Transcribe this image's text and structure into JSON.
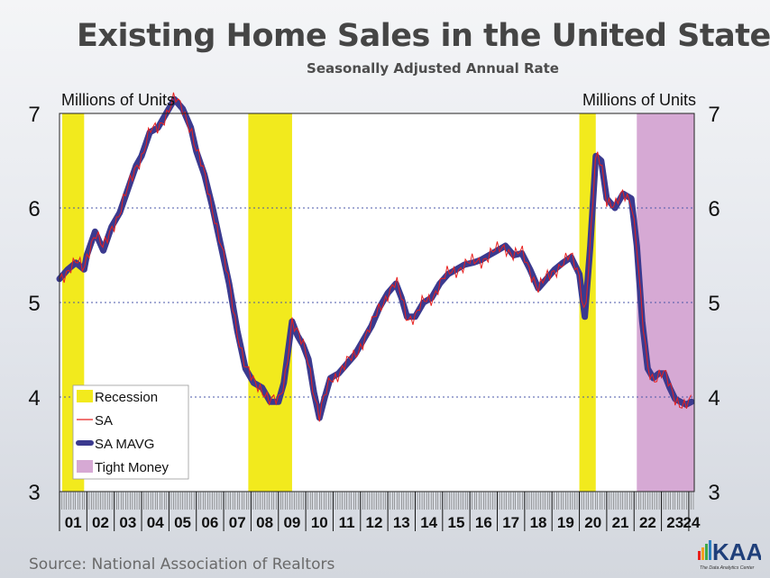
{
  "header": {
    "title": "Existing Home Sales in the United States",
    "subtitle": "Seasonally Adjusted Annual Rate"
  },
  "footer": {
    "source": "Source: National Association of Realtors",
    "logo_text": "KAA",
    "logo_tagline": "The Data Analytics Center"
  },
  "chart_data": {
    "type": "line",
    "title": "Existing Home Sales in the United States",
    "subtitle": "Seasonally Adjusted Annual Rate",
    "ylabel_left": "Millions of Units",
    "ylabel_right": "Millions of Units",
    "ylim": [
      3,
      7
    ],
    "yticks": [
      3,
      4,
      5,
      6,
      7
    ],
    "xlim": [
      2001.0,
      2024.2
    ],
    "year_labels": [
      "01",
      "02",
      "03",
      "04",
      "05",
      "06",
      "07",
      "08",
      "09",
      "10",
      "11",
      "12",
      "13",
      "14",
      "15",
      "16",
      "17",
      "18",
      "19",
      "20",
      "21",
      "22",
      "23",
      "24"
    ],
    "grid": "dotted horizontal at 4, 5, 6",
    "legend_position": "bottom-left",
    "legend": [
      {
        "label": "Recession",
        "kind": "box",
        "color": "#f2ea1d"
      },
      {
        "label": "SA",
        "kind": "line",
        "color": "#e8201e"
      },
      {
        "label": "SA MAVG",
        "kind": "thick-line",
        "color": "#3b3a8f"
      },
      {
        "label": "Tight Money",
        "kind": "box",
        "color": "#d6a9d4"
      }
    ],
    "shaded_periods": [
      {
        "name": "Recession",
        "start": 2001.1,
        "end": 2001.9,
        "color": "#f2ea1d"
      },
      {
        "name": "Recession",
        "start": 2007.9,
        "end": 2009.5,
        "color": "#f2ea1d"
      },
      {
        "name": "Recession",
        "start": 2020.0,
        "end": 2020.6,
        "color": "#f2ea1d"
      },
      {
        "name": "Tight Money",
        "start": 2022.1,
        "end": 2024.2,
        "color": "#d6a9d4"
      }
    ],
    "series": [
      {
        "name": "SA MAVG",
        "color": "#3b3a8f",
        "x": [
          2001.0,
          2001.3,
          2001.6,
          2001.9,
          2002.0,
          2002.3,
          2002.6,
          2002.9,
          2003.2,
          2003.5,
          2003.8,
          2004.0,
          2004.3,
          2004.6,
          2004.9,
          2005.2,
          2005.5,
          2005.8,
          2006.0,
          2006.3,
          2006.6,
          2006.9,
          2007.2,
          2007.5,
          2007.8,
          2008.1,
          2008.4,
          2008.7,
          2009.0,
          2009.2,
          2009.5,
          2009.7,
          2009.9,
          2010.1,
          2010.3,
          2010.5,
          2010.7,
          2010.9,
          2011.2,
          2011.5,
          2011.8,
          2012.1,
          2012.4,
          2012.7,
          2013.0,
          2013.3,
          2013.5,
          2013.7,
          2014.0,
          2014.3,
          2014.6,
          2014.9,
          2015.2,
          2015.5,
          2015.8,
          2016.1,
          2016.4,
          2016.7,
          2017.0,
          2017.3,
          2017.6,
          2017.9,
          2018.2,
          2018.5,
          2018.8,
          2019.1,
          2019.4,
          2019.7,
          2020.0,
          2020.2,
          2020.4,
          2020.6,
          2020.8,
          2021.0,
          2021.3,
          2021.6,
          2021.9,
          2022.1,
          2022.3,
          2022.5,
          2022.7,
          2022.9,
          2023.1,
          2023.3,
          2023.5,
          2023.7,
          2023.9,
          2024.1
        ],
        "values": [
          5.25,
          5.35,
          5.42,
          5.35,
          5.5,
          5.75,
          5.55,
          5.8,
          5.95,
          6.2,
          6.45,
          6.55,
          6.8,
          6.85,
          7.0,
          7.15,
          7.05,
          6.85,
          6.6,
          6.35,
          6.0,
          5.6,
          5.2,
          4.7,
          4.3,
          4.15,
          4.1,
          3.95,
          3.95,
          4.15,
          4.8,
          4.65,
          4.55,
          4.4,
          4.05,
          3.78,
          4.0,
          4.2,
          4.25,
          4.35,
          4.45,
          4.6,
          4.75,
          4.95,
          5.1,
          5.2,
          5.05,
          4.85,
          4.85,
          5.0,
          5.05,
          5.2,
          5.3,
          5.35,
          5.4,
          5.42,
          5.45,
          5.5,
          5.55,
          5.6,
          5.5,
          5.52,
          5.35,
          5.15,
          5.25,
          5.35,
          5.42,
          5.48,
          5.3,
          4.85,
          5.6,
          6.55,
          6.5,
          6.1,
          6.0,
          6.15,
          6.1,
          5.6,
          4.8,
          4.3,
          4.2,
          4.25,
          4.25,
          4.1,
          3.98,
          3.95,
          3.92,
          3.95
        ]
      }
    ]
  }
}
